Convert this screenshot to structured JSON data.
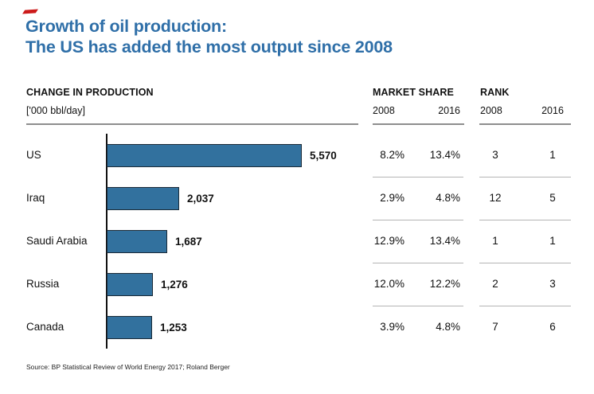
{
  "slide": {
    "title_line1": "Growth of oil production:",
    "title_line2": "The US has added the most output since 2008",
    "source": "Source: BP Statistical Review of World Energy 2017; Roland Berger",
    "title_color": "#2f6fa8",
    "bar_color": "#32719e",
    "accent_red": "#cc1a1a"
  },
  "left_header": {
    "title": "CHANGE IN PRODUCTION",
    "unit": "['000 bbl/day]"
  },
  "group_headers": {
    "market_share": "MARKET SHARE",
    "rank": "RANK",
    "ms_2008": "2008",
    "ms_2016": "2016",
    "rank_2008": "2008",
    "rank_2016": "2016"
  },
  "rows": [
    {
      "country": "US",
      "value_label": "5,570",
      "ms2008": "8.2%",
      "ms2016": "13.4%",
      "rank2008": "3",
      "rank2016": "1"
    },
    {
      "country": "Iraq",
      "value_label": "2,037",
      "ms2008": "2.9%",
      "ms2016": "4.8%",
      "rank2008": "12",
      "rank2016": "5"
    },
    {
      "country": "Saudi Arabia",
      "value_label": "1,687",
      "ms2008": "12.9%",
      "ms2016": "13.4%",
      "rank2008": "1",
      "rank2016": "1"
    },
    {
      "country": "Russia",
      "value_label": "1,276",
      "ms2008": "12.0%",
      "ms2016": "12.2%",
      "rank2008": "2",
      "rank2016": "3"
    },
    {
      "country": "Canada",
      "value_label": "1,253",
      "ms2008": "3.9%",
      "ms2016": "4.8%",
      "rank2008": "7",
      "rank2016": "6"
    }
  ],
  "chart_data": {
    "type": "bar",
    "orientation": "horizontal",
    "title": "CHANGE IN PRODUCTION ['000 bbl/day]",
    "categories": [
      "US",
      "Iraq",
      "Saudi Arabia",
      "Russia",
      "Canada"
    ],
    "values": [
      5570,
      2037,
      1687,
      1276,
      1253
    ],
    "xlim": [
      0,
      5570
    ],
    "grid": false,
    "legend": false,
    "series": [
      {
        "name": "Market share 2008",
        "values": [
          "8.2%",
          "2.9%",
          "12.9%",
          "12.0%",
          "3.9%"
        ]
      },
      {
        "name": "Market share 2016",
        "values": [
          "13.4%",
          "4.8%",
          "13.4%",
          "12.2%",
          "4.8%"
        ]
      },
      {
        "name": "Rank 2008",
        "values": [
          3,
          12,
          1,
          2,
          7
        ]
      },
      {
        "name": "Rank 2016",
        "values": [
          1,
          5,
          1,
          3,
          6
        ]
      }
    ]
  }
}
